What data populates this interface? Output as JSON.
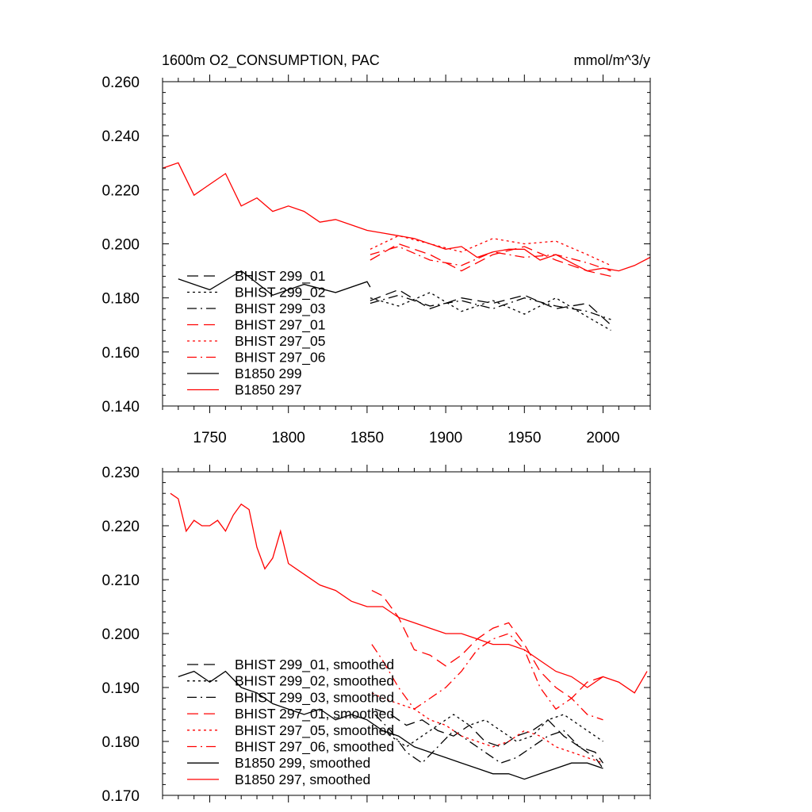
{
  "chart_data": [
    {
      "type": "line",
      "title": "1600m O2_CONSUMPTION, PAC",
      "units": "mmol/m^3/y",
      "xlim": [
        1720,
        2030
      ],
      "ylim": [
        0.14,
        0.26
      ],
      "x_ticks": [
        1750,
        1800,
        1850,
        1900,
        1950,
        2000
      ],
      "x_tick_labels": [
        "1750",
        "1800",
        "1850",
        "1900",
        "1950",
        "2000"
      ],
      "y_ticks": [
        0.14,
        0.16,
        0.18,
        0.2,
        0.22,
        0.24,
        0.26
      ],
      "y_tick_labels": [
        "0.140",
        "0.160",
        "0.180",
        "0.200",
        "0.220",
        "0.240",
        "0.260"
      ],
      "legend_position": "bottom-left",
      "series": [
        {
          "name": "BHIST 299_01",
          "color": "#000000",
          "dash": "longdash",
          "x": [
            1852,
            1870,
            1890,
            1910,
            1930,
            1950,
            1970,
            1990,
            2005
          ],
          "y": [
            0.179,
            0.183,
            0.176,
            0.18,
            0.178,
            0.181,
            0.176,
            0.178,
            0.17
          ]
        },
        {
          "name": "BHIST 299_02",
          "color": "#000000",
          "dash": "dot",
          "x": [
            1852,
            1870,
            1890,
            1910,
            1930,
            1950,
            1970,
            1990,
            2005
          ],
          "y": [
            0.18,
            0.177,
            0.182,
            0.175,
            0.179,
            0.174,
            0.18,
            0.173,
            0.168
          ]
        },
        {
          "name": "BHIST 299_03",
          "color": "#000000",
          "dash": "dashdot",
          "x": [
            1852,
            1870,
            1890,
            1910,
            1930,
            1950,
            1970,
            1990,
            2005
          ],
          "y": [
            0.178,
            0.181,
            0.177,
            0.179,
            0.176,
            0.18,
            0.177,
            0.175,
            0.172
          ]
        },
        {
          "name": "BHIST 297_01",
          "color": "#ff0000",
          "dash": "longdash",
          "x": [
            1852,
            1870,
            1890,
            1910,
            1930,
            1950,
            1970,
            1990,
            2005
          ],
          "y": [
            0.194,
            0.2,
            0.196,
            0.19,
            0.196,
            0.199,
            0.194,
            0.19,
            0.188
          ]
        },
        {
          "name": "BHIST 297_05",
          "color": "#ff0000",
          "dash": "dot",
          "x": [
            1852,
            1870,
            1890,
            1910,
            1930,
            1950,
            1970,
            1990,
            2005
          ],
          "y": [
            0.198,
            0.203,
            0.2,
            0.197,
            0.202,
            0.2,
            0.201,
            0.196,
            0.192
          ]
        },
        {
          "name": "BHIST 297_06",
          "color": "#ff0000",
          "dash": "dashdot",
          "x": [
            1852,
            1870,
            1890,
            1910,
            1930,
            1950,
            1970,
            1990,
            2005
          ],
          "y": [
            0.196,
            0.199,
            0.194,
            0.192,
            0.197,
            0.195,
            0.196,
            0.193,
            0.19
          ]
        },
        {
          "name": "B1850 299",
          "color": "#000000",
          "dash": "solid",
          "x": [
            1730,
            1750,
            1770,
            1790,
            1810,
            1830,
            1850,
            1852
          ],
          "y": [
            0.187,
            0.183,
            0.19,
            0.181,
            0.185,
            0.182,
            0.186,
            0.184
          ]
        },
        {
          "name": "B1850 297",
          "color": "#ff0000",
          "dash": "solid",
          "x": [
            1720,
            1730,
            1740,
            1750,
            1760,
            1770,
            1780,
            1790,
            1800,
            1810,
            1820,
            1830,
            1840,
            1850,
            1860,
            1870,
            1880,
            1890,
            1900,
            1910,
            1920,
            1930,
            1940,
            1950,
            1960,
            1970,
            1980,
            1990,
            2000,
            2010,
            2020,
            2030
          ],
          "y": [
            0.228,
            0.23,
            0.218,
            0.222,
            0.226,
            0.214,
            0.217,
            0.212,
            0.214,
            0.212,
            0.208,
            0.209,
            0.207,
            0.205,
            0.204,
            0.203,
            0.202,
            0.2,
            0.198,
            0.199,
            0.195,
            0.197,
            0.198,
            0.198,
            0.194,
            0.196,
            0.193,
            0.19,
            0.191,
            0.19,
            0.192,
            0.195
          ]
        }
      ]
    },
    {
      "type": "line",
      "xlim": [
        1720,
        2030
      ],
      "ylim": [
        0.17,
        0.23
      ],
      "x_ticks": [
        1750,
        1800,
        1850,
        1900,
        1950,
        2000
      ],
      "y_ticks": [
        0.17,
        0.18,
        0.19,
        0.2,
        0.21,
        0.22,
        0.23
      ],
      "y_tick_labels": [
        "0.170",
        "0.180",
        "0.190",
        "0.200",
        "0.210",
        "0.220",
        "0.230"
      ],
      "legend_position": "bottom-left",
      "series": [
        {
          "name": "BHIST 299_01, smoothed",
          "color": "#000000",
          "dash": "longdash",
          "x": [
            1855,
            1865,
            1875,
            1885,
            1895,
            1905,
            1915,
            1925,
            1935,
            1945,
            1955,
            1965,
            1975,
            1985,
            1995,
            2000
          ],
          "y": [
            0.186,
            0.185,
            0.183,
            0.184,
            0.182,
            0.181,
            0.183,
            0.18,
            0.179,
            0.181,
            0.182,
            0.184,
            0.181,
            0.179,
            0.178,
            0.176
          ]
        },
        {
          "name": "BHIST 299_02, smoothed",
          "color": "#000000",
          "dash": "dot",
          "x": [
            1855,
            1865,
            1875,
            1885,
            1895,
            1905,
            1915,
            1925,
            1935,
            1945,
            1955,
            1965,
            1975,
            1985,
            1995,
            2000
          ],
          "y": [
            0.183,
            0.181,
            0.179,
            0.181,
            0.183,
            0.185,
            0.183,
            0.184,
            0.182,
            0.18,
            0.181,
            0.184,
            0.185,
            0.183,
            0.181,
            0.18
          ]
        },
        {
          "name": "BHIST 299_03, smoothed",
          "color": "#000000",
          "dash": "dashdot",
          "x": [
            1855,
            1865,
            1875,
            1885,
            1895,
            1905,
            1915,
            1925,
            1935,
            1945,
            1955,
            1965,
            1975,
            1985,
            1995,
            2000
          ],
          "y": [
            0.185,
            0.182,
            0.178,
            0.176,
            0.179,
            0.182,
            0.18,
            0.178,
            0.176,
            0.177,
            0.179,
            0.181,
            0.182,
            0.179,
            0.177,
            0.175
          ]
        },
        {
          "name": "BHIST 297_01, smoothed",
          "color": "#ff0000",
          "dash": "longdash",
          "x": [
            1853,
            1860,
            1870,
            1880,
            1890,
            1900,
            1910,
            1920,
            1930,
            1940,
            1950,
            1960,
            1970,
            1980,
            1990,
            2000
          ],
          "y": [
            0.208,
            0.207,
            0.203,
            0.197,
            0.196,
            0.194,
            0.196,
            0.199,
            0.201,
            0.202,
            0.198,
            0.193,
            0.19,
            0.188,
            0.191,
            0.192
          ]
        },
        {
          "name": "BHIST 297_05, smoothed",
          "color": "#ff0000",
          "dash": "dot",
          "x": [
            1853,
            1860,
            1870,
            1880,
            1890,
            1900,
            1910,
            1920,
            1930,
            1940,
            1950,
            1960,
            1970,
            1980,
            1990,
            2000
          ],
          "y": [
            0.189,
            0.188,
            0.187,
            0.186,
            0.184,
            0.183,
            0.181,
            0.18,
            0.179,
            0.18,
            0.182,
            0.181,
            0.179,
            0.178,
            0.177,
            0.176
          ]
        },
        {
          "name": "BHIST 297_06, smoothed",
          "color": "#ff0000",
          "dash": "dashdot",
          "x": [
            1853,
            1860,
            1870,
            1880,
            1890,
            1900,
            1910,
            1920,
            1930,
            1940,
            1950,
            1960,
            1970,
            1980,
            1990,
            2000
          ],
          "y": [
            0.198,
            0.195,
            0.19,
            0.186,
            0.188,
            0.19,
            0.193,
            0.197,
            0.199,
            0.2,
            0.197,
            0.19,
            0.186,
            0.188,
            0.185,
            0.184
          ]
        },
        {
          "name": "B1850 299, smoothed",
          "color": "#000000",
          "dash": "solid",
          "x": [
            1730,
            1740,
            1750,
            1760,
            1770,
            1780,
            1790,
            1800,
            1810,
            1820,
            1830,
            1840,
            1850,
            1860,
            1870,
            1880,
            1890,
            1900,
            1910,
            1920,
            1930,
            1940,
            1950,
            1960,
            1970,
            1980,
            1990,
            2000
          ],
          "y": [
            0.192,
            0.193,
            0.191,
            0.193,
            0.19,
            0.189,
            0.187,
            0.186,
            0.185,
            0.186,
            0.184,
            0.185,
            0.184,
            0.182,
            0.181,
            0.179,
            0.178,
            0.177,
            0.176,
            0.175,
            0.174,
            0.174,
            0.173,
            0.174,
            0.175,
            0.176,
            0.176,
            0.175
          ]
        },
        {
          "name": "B1850 297, smoothed",
          "color": "#ff0000",
          "dash": "solid",
          "x": [
            1725,
            1730,
            1735,
            1740,
            1745,
            1750,
            1755,
            1760,
            1765,
            1770,
            1775,
            1780,
            1785,
            1790,
            1795,
            1800,
            1810,
            1820,
            1830,
            1840,
            1850,
            1860,
            1870,
            1880,
            1890,
            1900,
            1910,
            1920,
            1930,
            1940,
            1950,
            1960,
            1970,
            1980,
            1990,
            2000,
            2010,
            2020,
            2028
          ],
          "y": [
            0.226,
            0.225,
            0.219,
            0.221,
            0.22,
            0.22,
            0.221,
            0.219,
            0.222,
            0.224,
            0.223,
            0.216,
            0.212,
            0.214,
            0.219,
            0.213,
            0.211,
            0.209,
            0.208,
            0.206,
            0.205,
            0.205,
            0.203,
            0.202,
            0.201,
            0.2,
            0.2,
            0.199,
            0.198,
            0.198,
            0.197,
            0.195,
            0.193,
            0.192,
            0.19,
            0.192,
            0.191,
            0.189,
            0.193
          ]
        }
      ]
    }
  ]
}
